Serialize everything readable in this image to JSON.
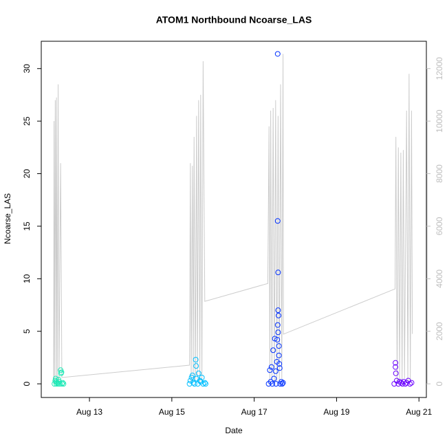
{
  "chart_data": {
    "type": "scatter",
    "title": "ATOM1 Northbound Ncoarse_LAS",
    "xlabel": "Date",
    "ylabel": "Ncoarse_LAS",
    "xlim": [
      11.83,
      21.18
    ],
    "ylim": [
      -1.3,
      32.6
    ],
    "y2lim": [
      -520,
      13040
    ],
    "xticks": [
      {
        "value": 13,
        "label": "Aug 13"
      },
      {
        "value": 15,
        "label": "Aug 15"
      },
      {
        "value": 17,
        "label": "Aug 17"
      },
      {
        "value": 19,
        "label": "Aug 19"
      },
      {
        "value": 21,
        "label": "Aug 21"
      }
    ],
    "yticks": [
      0,
      5,
      10,
      15,
      20,
      25,
      30
    ],
    "y2ticks": [
      0,
      2000,
      4000,
      6000,
      8000,
      10000,
      12000
    ],
    "y2color": "#bebebe",
    "series": [
      {
        "color": "#1de9b6",
        "x": [
          12.15,
          12.17,
          12.18,
          12.19,
          12.2,
          12.22,
          12.24,
          12.25,
          12.26,
          12.28,
          12.3,
          12.31,
          12.32,
          12.33,
          12.35,
          12.37
        ],
        "values": [
          0,
          0.3,
          0.5,
          0.2,
          0,
          0.1,
          0,
          0.4,
          0.2,
          0,
          1.3,
          1.0,
          1.1,
          0,
          0.1,
          0
        ]
      },
      {
        "color": "#00bfff",
        "x": [
          15.43,
          15.45,
          15.48,
          15.5,
          15.52,
          15.55,
          15.58,
          15.59,
          15.6,
          15.63,
          15.65,
          15.68,
          15.7,
          15.73,
          15.76,
          15.8,
          15.82
        ],
        "values": [
          0,
          0.3,
          0.6,
          0.8,
          0.1,
          0,
          2.3,
          1.7,
          0.5,
          0,
          1.0,
          0.3,
          0.2,
          0.6,
          0,
          0.1,
          0
        ]
      },
      {
        "color": "#0030ff",
        "x": [
          17.35,
          17.38,
          17.4,
          17.42,
          17.44,
          17.46,
          17.48,
          17.5,
          17.52,
          17.53,
          17.55,
          17.56,
          17.57,
          17.57,
          17.57,
          17.58,
          17.58,
          17.58,
          17.59,
          17.6,
          17.6,
          17.61,
          17.62,
          17.63,
          17.66,
          17.68,
          17.7
        ],
        "values": [
          0,
          1.3,
          0.2,
          1.6,
          0,
          3.2,
          0.5,
          4.3,
          1.2,
          0,
          2.1,
          4.2,
          31.4,
          15.5,
          5.6,
          10.6,
          7.0,
          4.9,
          6.5,
          3.6,
          2.7,
          1.9,
          1.5,
          0,
          0.2,
          0,
          0.1
        ]
      },
      {
        "color": "#6a00ff",
        "x": [
          20.4,
          20.43,
          20.43,
          20.44,
          20.46,
          20.5,
          20.53,
          20.57,
          20.6,
          20.63,
          20.67,
          20.7,
          20.74,
          20.78,
          20.82
        ],
        "values": [
          0,
          2.0,
          1.6,
          1.0,
          0.3,
          0,
          0.2,
          0.1,
          0,
          0.2,
          0,
          0.1,
          0.3,
          0,
          0.1
        ]
      },
      {
        "color": "#cccccc",
        "axis": "y2",
        "type": "line",
        "x": [
          12.13,
          12.14,
          12.15,
          12.17,
          12.19,
          12.2,
          12.22,
          12.24,
          12.26,
          12.3,
          12.33,
          15.43,
          15.45,
          15.47,
          15.5,
          15.52,
          15.54,
          15.57,
          15.6,
          15.62,
          15.65,
          15.68,
          15.7,
          15.73,
          15.76,
          15.8,
          17.33,
          17.36,
          17.38,
          17.4,
          17.43,
          17.46,
          17.49,
          17.52,
          17.55,
          17.58,
          17.61,
          17.64,
          17.67,
          17.7,
          17.71,
          20.42,
          20.44,
          20.47,
          20.5,
          20.53,
          20.56,
          20.59,
          20.62,
          20.65,
          20.7,
          20.73,
          20.76,
          20.79,
          20.82,
          20.84
        ],
        "values": [
          0,
          10000,
          0,
          10800,
          0,
          10900,
          200,
          11400,
          0,
          8400,
          240,
          710,
          8400,
          0,
          8300,
          100,
          9400,
          0,
          10200,
          200,
          10800,
          0,
          11000,
          100,
          12280,
          3140,
          3820,
          9800,
          0,
          10400,
          200,
          10500,
          0,
          10800,
          100,
          10200,
          0,
          11400,
          200,
          12560,
          1890,
          3615,
          9400,
          0,
          9000,
          100,
          8800,
          0,
          8900,
          200,
          10400,
          0,
          11800,
          100,
          10400,
          1900
        ]
      }
    ]
  }
}
